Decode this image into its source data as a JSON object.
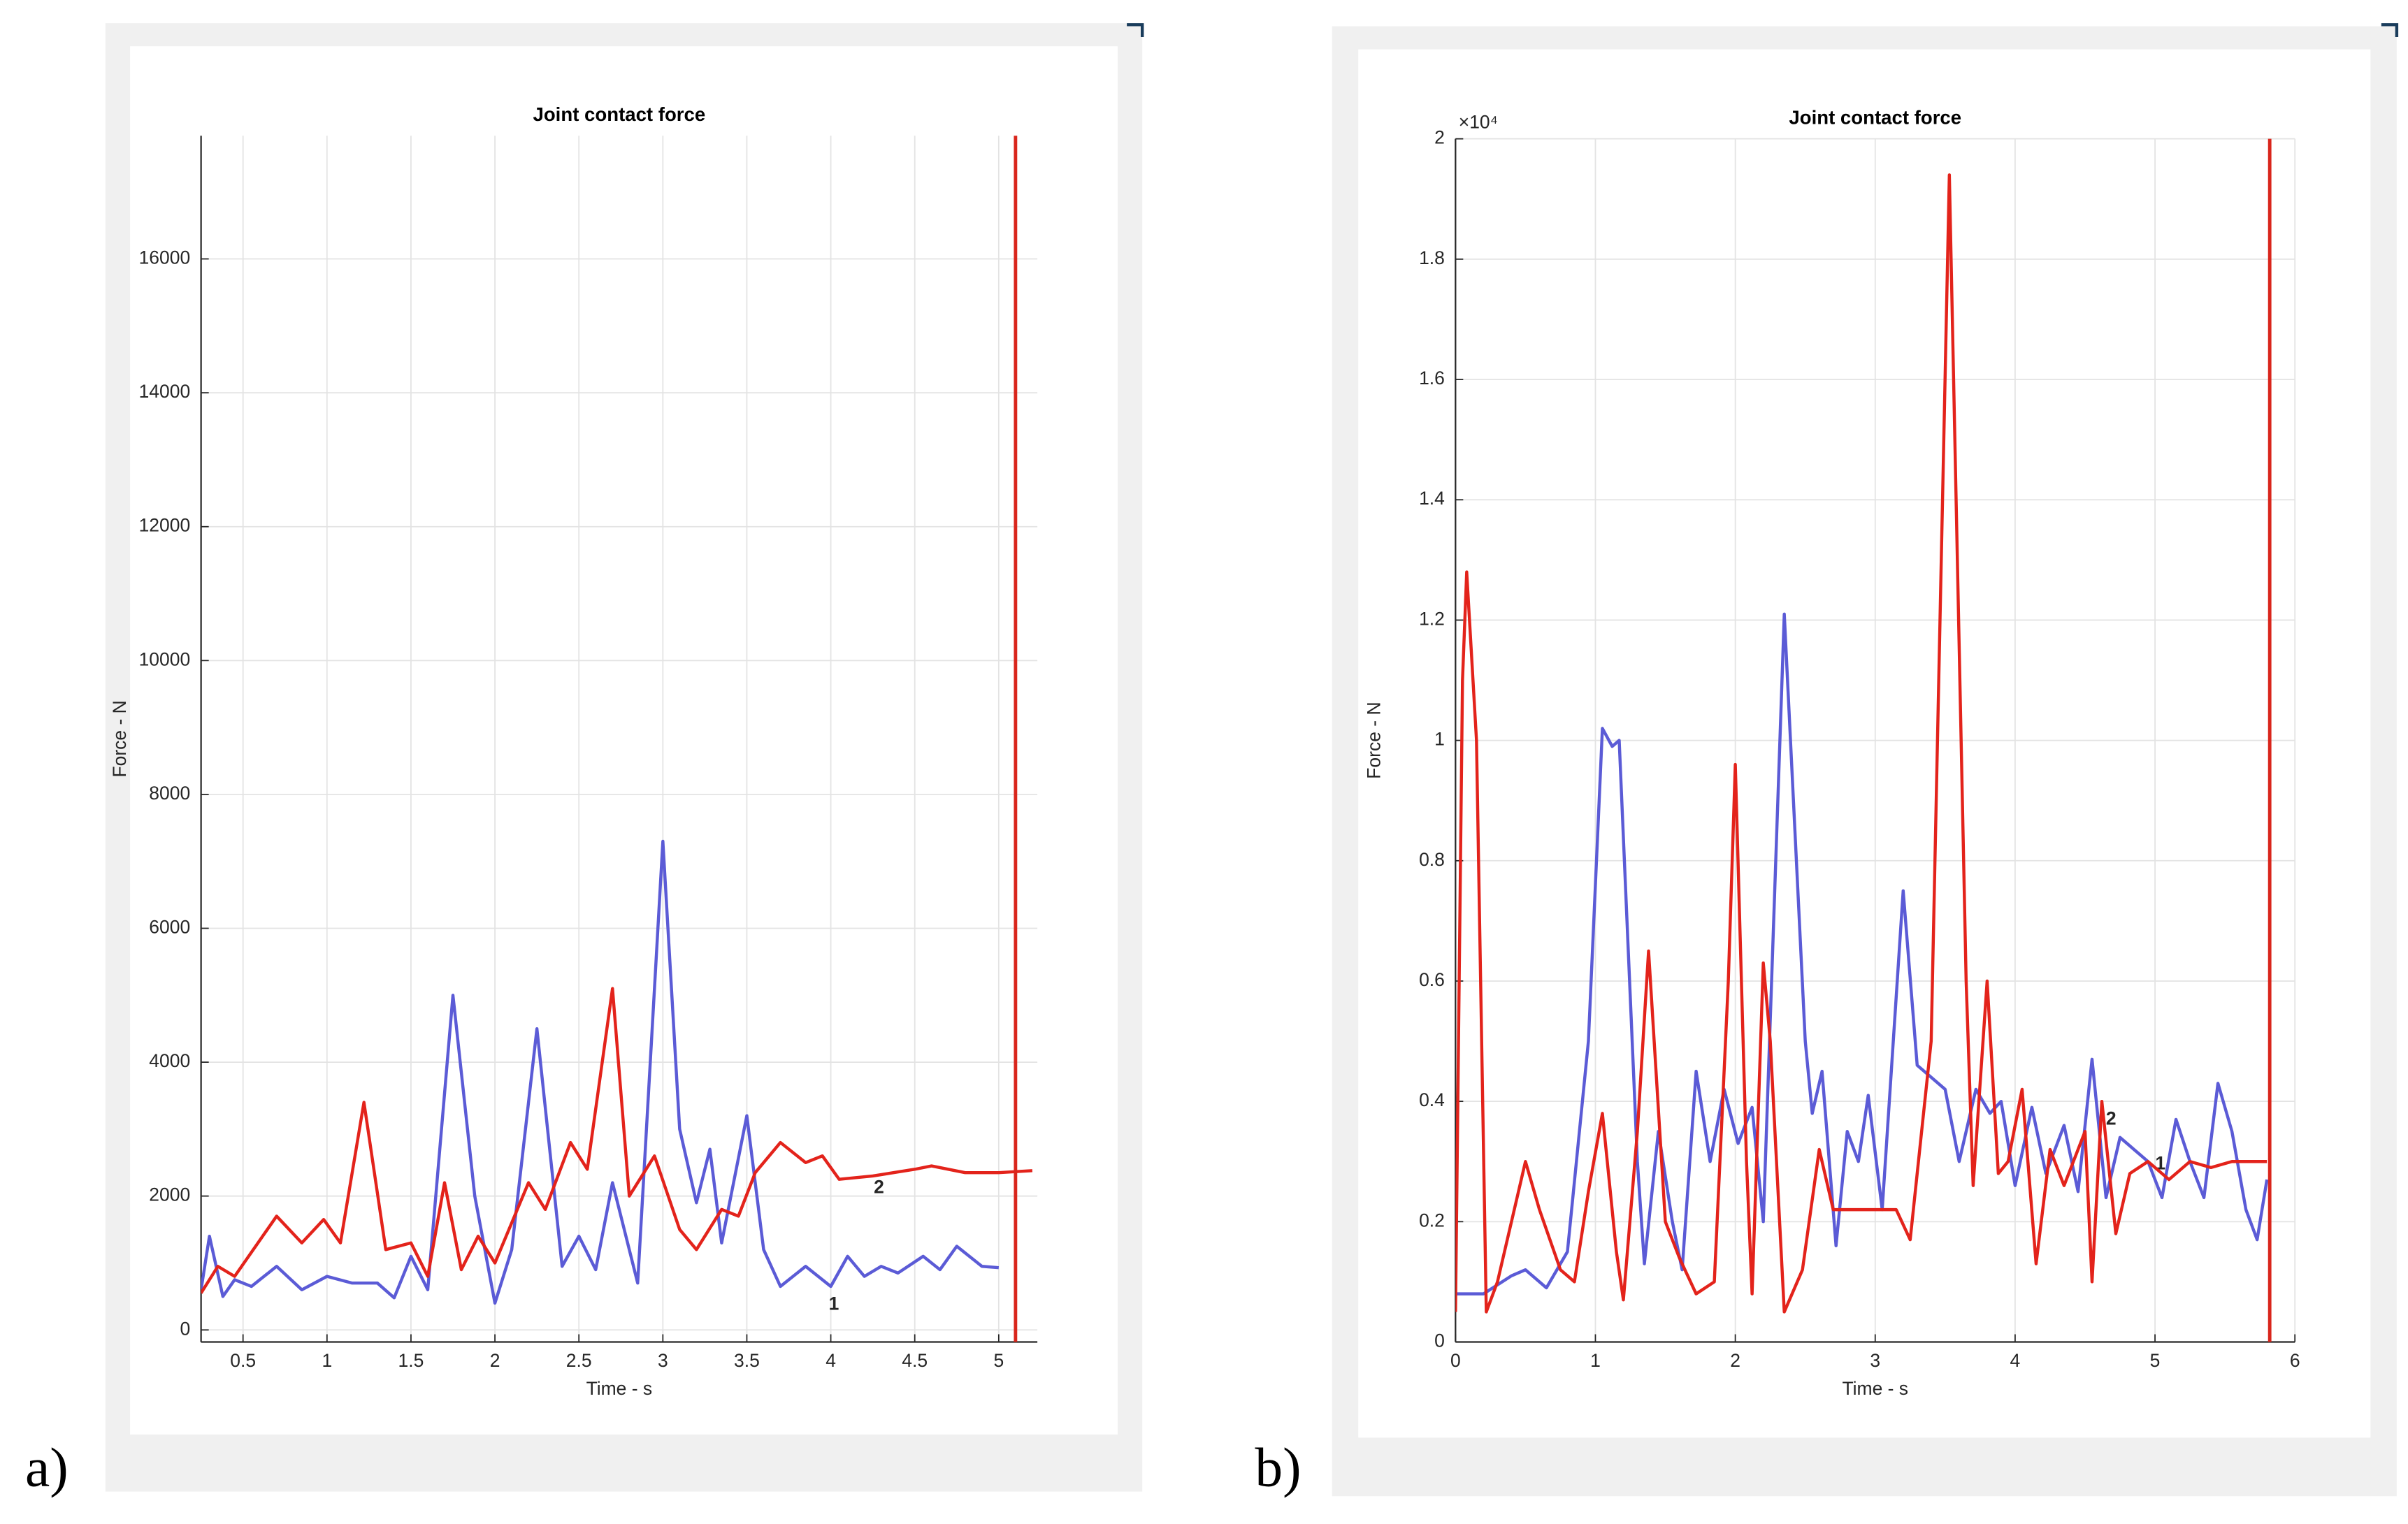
{
  "chart_data": [
    {
      "type": "line",
      "panel_label": "a)",
      "title": "Joint contact force",
      "x_label": "Time - s",
      "y_label": "Force - N",
      "xlim": [
        0.25,
        5.23
      ],
      "ylim": [
        -180,
        17840
      ],
      "xticks": [
        0.5,
        1,
        1.5,
        2,
        2.5,
        3,
        3.5,
        4,
        4.5,
        5
      ],
      "yticks": [
        0,
        2000,
        4000,
        6000,
        8000,
        10000,
        12000,
        14000,
        16000
      ],
      "grid": true,
      "marker_x": 5.1,
      "marker_color": "#d9261c",
      "series": [
        {
          "name": "1",
          "color": "#5b5bd6",
          "x": [
            0.25,
            0.3,
            0.38,
            0.45,
            0.55,
            0.7,
            0.85,
            1.0,
            1.15,
            1.3,
            1.4,
            1.5,
            1.6,
            1.75,
            1.88,
            2.0,
            2.1,
            2.25,
            2.4,
            2.5,
            2.6,
            2.7,
            2.85,
            3.0,
            3.1,
            3.2,
            3.28,
            3.35,
            3.5,
            3.6,
            3.7,
            3.85,
            4.0,
            4.1,
            4.2,
            4.3,
            4.4,
            4.55,
            4.65,
            4.75,
            4.9,
            5.0
          ],
          "values": [
            600,
            1400,
            500,
            750,
            650,
            950,
            600,
            800,
            700,
            700,
            480,
            1100,
            600,
            5000,
            2000,
            400,
            1200,
            4500,
            950,
            1400,
            900,
            2200,
            700,
            7300,
            3000,
            1900,
            2700,
            1300,
            3200,
            1200,
            650,
            950,
            650,
            1100,
            800,
            950,
            850,
            1100,
            900,
            1250,
            950,
            930
          ]
        },
        {
          "name": "2",
          "color": "#e3231b",
          "x": [
            0.25,
            0.35,
            0.45,
            0.7,
            0.85,
            0.98,
            1.08,
            1.22,
            1.35,
            1.5,
            1.6,
            1.7,
            1.8,
            1.9,
            2.0,
            2.2,
            2.3,
            2.45,
            2.55,
            2.7,
            2.8,
            2.95,
            3.1,
            3.2,
            3.35,
            3.45,
            3.55,
            3.7,
            3.85,
            3.95,
            4.05,
            4.25,
            4.5,
            4.6,
            4.8,
            5.0,
            5.2
          ],
          "values": [
            550,
            950,
            800,
            1700,
            1300,
            1650,
            1300,
            3400,
            1200,
            1300,
            800,
            2200,
            900,
            1400,
            1000,
            2200,
            1800,
            2800,
            2400,
            5100,
            2000,
            2600,
            1500,
            1200,
            1800,
            1700,
            2350,
            2800,
            2500,
            2600,
            2250,
            2300,
            2400,
            2450,
            2350,
            2350,
            2380
          ]
        }
      ]
    },
    {
      "type": "line",
      "panel_label": "b)",
      "title": "Joint contact force",
      "x_label": "Time - s",
      "y_label": "Force - N",
      "y_exponent_label": "×10⁴",
      "xlim": [
        0,
        6
      ],
      "ylim": [
        0,
        2
      ],
      "xticks": [
        0,
        1,
        2,
        3,
        4,
        5,
        6
      ],
      "yticks": [
        0,
        0.2,
        0.4,
        0.6,
        0.8,
        1,
        1.2,
        1.4,
        1.6,
        1.8,
        2
      ],
      "grid": true,
      "marker_x": 5.82,
      "marker_color": "#d9261c",
      "series": [
        {
          "name": "1",
          "color": "#5b5bd6",
          "x": [
            0,
            0.2,
            0.4,
            0.5,
            0.65,
            0.8,
            0.95,
            1.05,
            1.12,
            1.17,
            1.3,
            1.35,
            1.45,
            1.55,
            1.62,
            1.72,
            1.82,
            1.92,
            2.02,
            2.12,
            2.2,
            2.35,
            2.5,
            2.55,
            2.62,
            2.72,
            2.8,
            2.88,
            2.95,
            3.05,
            3.2,
            3.3,
            3.4,
            3.5,
            3.6,
            3.72,
            3.82,
            3.9,
            4.0,
            4.12,
            4.22,
            4.35,
            4.45,
            4.55,
            4.65,
            4.75,
            4.85,
            4.95,
            5.05,
            5.15,
            5.25,
            5.35,
            5.45,
            5.55,
            5.65,
            5.73,
            5.8
          ],
          "values": [
            0.08,
            0.08,
            0.11,
            0.12,
            0.09,
            0.15,
            0.5,
            1.02,
            0.99,
            1.0,
            0.3,
            0.13,
            0.35,
            0.2,
            0.12,
            0.45,
            0.3,
            0.42,
            0.33,
            0.39,
            0.2,
            1.21,
            0.5,
            0.38,
            0.45,
            0.16,
            0.35,
            0.3,
            0.41,
            0.22,
            0.75,
            0.46,
            0.44,
            0.42,
            0.3,
            0.42,
            0.38,
            0.4,
            0.26,
            0.39,
            0.28,
            0.36,
            0.25,
            0.47,
            0.24,
            0.34,
            0.32,
            0.3,
            0.24,
            0.37,
            0.3,
            0.24,
            0.43,
            0.35,
            0.22,
            0.17,
            0.27
          ]
        },
        {
          "name": "2",
          "color": "#e3231b",
          "x": [
            0,
            0.05,
            0.08,
            0.15,
            0.22,
            0.3,
            0.4,
            0.5,
            0.6,
            0.75,
            0.85,
            0.95,
            1.05,
            1.15,
            1.2,
            1.3,
            1.38,
            1.5,
            1.6,
            1.72,
            1.85,
            1.95,
            2.0,
            2.08,
            2.12,
            2.2,
            2.25,
            2.35,
            2.48,
            2.6,
            2.7,
            2.85,
            3.0,
            3.15,
            3.25,
            3.4,
            3.53,
            3.65,
            3.7,
            3.8,
            3.88,
            3.95,
            4.05,
            4.15,
            4.25,
            4.35,
            4.5,
            4.55,
            4.62,
            4.72,
            4.82,
            4.95,
            5.1,
            5.25,
            5.4,
            5.55,
            5.7,
            5.8
          ],
          "values": [
            0.05,
            1.1,
            1.28,
            1.0,
            0.05,
            0.1,
            0.2,
            0.3,
            0.22,
            0.12,
            0.1,
            0.25,
            0.38,
            0.15,
            0.07,
            0.35,
            0.65,
            0.2,
            0.14,
            0.08,
            0.1,
            0.6,
            0.96,
            0.3,
            0.08,
            0.63,
            0.5,
            0.05,
            0.12,
            0.32,
            0.22,
            0.22,
            0.22,
            0.22,
            0.17,
            0.5,
            1.94,
            0.6,
            0.26,
            0.6,
            0.28,
            0.3,
            0.42,
            0.13,
            0.32,
            0.26,
            0.35,
            0.1,
            0.4,
            0.18,
            0.28,
            0.3,
            0.27,
            0.3,
            0.29,
            0.3,
            0.3,
            0.3
          ]
        }
      ]
    }
  ]
}
